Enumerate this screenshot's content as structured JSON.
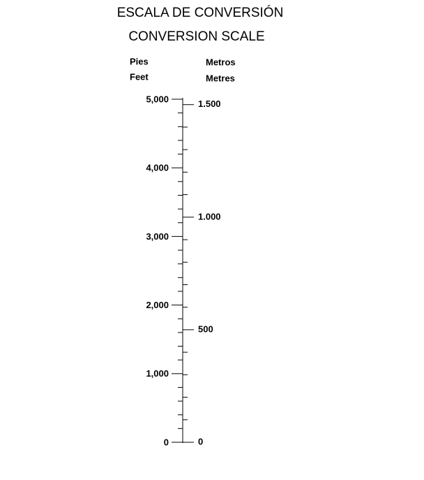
{
  "header": {
    "title": "ESCALA DE CONVERSIÓN",
    "subtitle": "CONVERSION SCALE"
  },
  "feet": {
    "heading": [
      "Pies",
      "Feet"
    ],
    "lim": [
      0,
      5000
    ],
    "ticks": [
      {
        "value": 0,
        "label": "0"
      },
      {
        "value": 1000,
        "label": "1,000"
      },
      {
        "value": 2000,
        "label": "2,000"
      },
      {
        "value": 3000,
        "label": "3,000"
      },
      {
        "value": 4000,
        "label": "4,000"
      },
      {
        "value": 5000,
        "label": "5,000"
      }
    ],
    "minor_ticks": [
      200,
      400,
      600,
      800,
      1200,
      1400,
      1600,
      1800,
      2200,
      2400,
      2600,
      2800,
      3200,
      3400,
      3600,
      3800,
      4200,
      4400,
      4600,
      4800
    ]
  },
  "metres": {
    "heading": [
      "Metros",
      "Metres"
    ],
    "lim": [
      0,
      1524
    ],
    "ticks": [
      {
        "value": 0,
        "label": "0"
      },
      {
        "value": 500,
        "label": "500"
      },
      {
        "value": 1000,
        "label": "1.000"
      },
      {
        "value": 1500,
        "label": "1.500"
      }
    ],
    "minor_ticks": [
      100,
      200,
      300,
      400,
      600,
      700,
      800,
      900,
      1100,
      1200,
      1300,
      1400
    ]
  }
}
